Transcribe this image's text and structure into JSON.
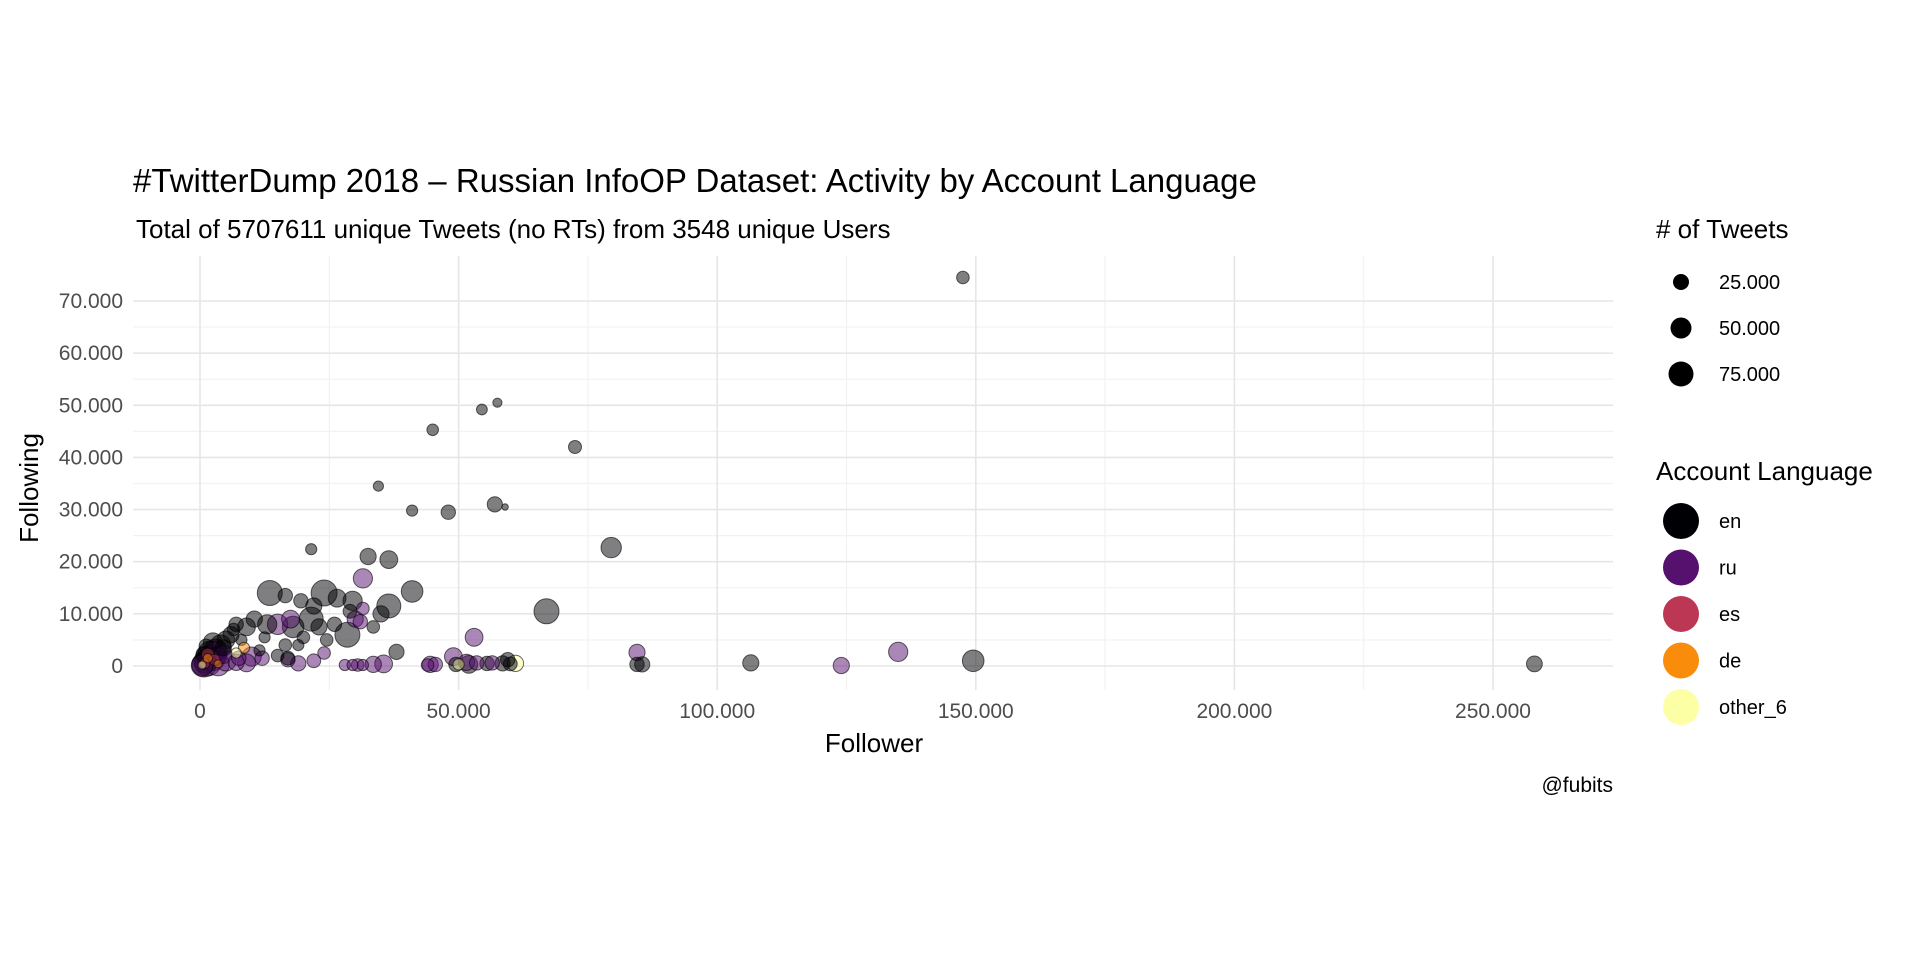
{
  "chart_data": {
    "type": "scatter",
    "title": "#TwitterDump 2018 – Russian InfoOP Dataset: Activity by Account Language",
    "subtitle": "Total of 5707611 unique Tweets (no RTs) from 3548 unique Users",
    "xlabel": "Follower",
    "ylabel": "Following",
    "caption": "@fubits",
    "xlim": [
      -12000,
      270000
    ],
    "ylim": [
      -5000,
      79000
    ],
    "x_ticks": [
      0,
      50000,
      100000,
      150000,
      200000,
      250000
    ],
    "x_tick_labels": [
      "0",
      "50.000",
      "100.000",
      "150.000",
      "200.000",
      "250.000"
    ],
    "y_ticks": [
      0,
      10000,
      20000,
      30000,
      40000,
      50000,
      60000,
      70000
    ],
    "y_tick_labels": [
      "0",
      "10.000",
      "20.000",
      "30.000",
      "40.000",
      "50.000",
      "60.000",
      "70.000"
    ],
    "grid": true,
    "size_legend": {
      "title": "# of Tweets",
      "entries": [
        {
          "label": "25.000",
          "value": 25000
        },
        {
          "label": "50.000",
          "value": 50000
        },
        {
          "label": "75.000",
          "value": 75000
        }
      ]
    },
    "color_legend": {
      "title": "Account Language",
      "entries": [
        {
          "label": "en",
          "color": "#000004"
        },
        {
          "label": "ru",
          "color": "#56106e"
        },
        {
          "label": "es",
          "color": "#bb3754"
        },
        {
          "label": "de",
          "color": "#f98c0a"
        },
        {
          "label": "other_6",
          "color": "#fcffa4"
        }
      ]
    },
    "series": [
      {
        "name": "en",
        "color": "#000004",
        "points": [
          [
            147500,
            74500,
            15000
          ],
          [
            57500,
            50500,
            8000
          ],
          [
            54500,
            49200,
            11000
          ],
          [
            45000,
            45300,
            13000
          ],
          [
            72500,
            42000,
            16000
          ],
          [
            57000,
            31000,
            22000
          ],
          [
            59000,
            30500,
            4000
          ],
          [
            48000,
            29500,
            20000
          ],
          [
            41000,
            29800,
            12000
          ],
          [
            34500,
            34500,
            10000
          ],
          [
            79500,
            22700,
            40000
          ],
          [
            36500,
            20400,
            30000
          ],
          [
            32500,
            21000,
            25000
          ],
          [
            21500,
            22400,
            12000
          ],
          [
            67000,
            10500,
            60000
          ],
          [
            41000,
            14300,
            45000
          ],
          [
            36500,
            11500,
            55000
          ],
          [
            29500,
            12500,
            35000
          ],
          [
            24000,
            14000,
            65000
          ],
          [
            13500,
            14000,
            60000
          ],
          [
            26500,
            13000,
            30000
          ],
          [
            19500,
            12500,
            20000
          ],
          [
            22000,
            11500,
            25000
          ],
          [
            28500,
            6000,
            60000
          ],
          [
            21500,
            9000,
            55000
          ],
          [
            18000,
            7500,
            45000
          ],
          [
            13000,
            8000,
            35000
          ],
          [
            10500,
            9000,
            25000
          ],
          [
            9000,
            7500,
            30000
          ],
          [
            7000,
            8000,
            20000
          ],
          [
            6000,
            6000,
            25000
          ],
          [
            5000,
            5000,
            30000
          ],
          [
            4000,
            4000,
            40000
          ],
          [
            3000,
            3000,
            50000
          ],
          [
            2000,
            2500,
            55000
          ],
          [
            1500,
            1500,
            60000
          ],
          [
            1000,
            800,
            50000
          ],
          [
            500,
            300,
            45000
          ],
          [
            2500,
            4500,
            35000
          ],
          [
            3500,
            2000,
            30000
          ],
          [
            4500,
            3500,
            25000
          ],
          [
            1200,
            3800,
            20000
          ],
          [
            800,
            2200,
            25000
          ],
          [
            16500,
            4000,
            15000
          ],
          [
            23000,
            7500,
            25000
          ],
          [
            26000,
            8000,
            20000
          ],
          [
            33500,
            7500,
            15000
          ],
          [
            38000,
            2700,
            22000
          ],
          [
            35000,
            10000,
            25000
          ],
          [
            29000,
            10500,
            18000
          ],
          [
            19000,
            4000,
            12000
          ],
          [
            17000,
            1500,
            18000
          ],
          [
            15000,
            2000,
            15000
          ],
          [
            11500,
            3000,
            12000
          ],
          [
            20000,
            5500,
            15000
          ],
          [
            24500,
            5000,
            15000
          ],
          [
            16500,
            13500,
            20000
          ],
          [
            6500,
            7000,
            15000
          ],
          [
            8000,
            5000,
            12000
          ],
          [
            12500,
            5500,
            12000
          ],
          [
            52000,
            300,
            30000
          ],
          [
            49500,
            300,
            20000
          ],
          [
            55500,
            500,
            20000
          ],
          [
            58500,
            500,
            22000
          ],
          [
            59500,
            1200,
            20000
          ],
          [
            60000,
            400,
            18000
          ],
          [
            84500,
            300,
            20000
          ],
          [
            85500,
            300,
            22000
          ],
          [
            106500,
            600,
            25000
          ],
          [
            149500,
            1000,
            45000
          ],
          [
            258000,
            400,
            24000
          ]
        ]
      },
      {
        "name": "ru",
        "color": "#56106e",
        "points": [
          [
            31500,
            16800,
            35000
          ],
          [
            31500,
            11000,
            15000
          ],
          [
            30000,
            9000,
            25000
          ],
          [
            31000,
            8500,
            20000
          ],
          [
            53000,
            5500,
            30000
          ],
          [
            49000,
            1800,
            30000
          ],
          [
            51500,
            700,
            25000
          ],
          [
            53500,
            600,
            20000
          ],
          [
            56500,
            600,
            20000
          ],
          [
            44500,
            300,
            25000
          ],
          [
            45500,
            300,
            20000
          ],
          [
            44000,
            200,
            15000
          ],
          [
            35500,
            400,
            30000
          ],
          [
            33500,
            300,
            25000
          ],
          [
            30500,
            200,
            15000
          ],
          [
            28000,
            200,
            12000
          ],
          [
            29500,
            200,
            12000
          ],
          [
            31500,
            200,
            12000
          ],
          [
            24000,
            2500,
            15000
          ],
          [
            22000,
            1000,
            18000
          ],
          [
            19000,
            500,
            22000
          ],
          [
            17000,
            1200,
            20000
          ],
          [
            15000,
            8000,
            40000
          ],
          [
            17500,
            9000,
            30000
          ],
          [
            10000,
            1800,
            35000
          ],
          [
            9000,
            600,
            30000
          ],
          [
            7000,
            700,
            25000
          ],
          [
            5000,
            1000,
            40000
          ],
          [
            3500,
            300,
            50000
          ],
          [
            2500,
            1500,
            60000
          ],
          [
            1500,
            600,
            65000
          ],
          [
            800,
            200,
            55000
          ],
          [
            400,
            100,
            45000
          ],
          [
            4500,
            2200,
            30000
          ],
          [
            3000,
            2800,
            35000
          ],
          [
            7500,
            1500,
            20000
          ],
          [
            12000,
            1500,
            20000
          ],
          [
            84500,
            2600,
            25000
          ],
          [
            124000,
            100,
            25000
          ],
          [
            135000,
            2700,
            35000
          ]
        ]
      },
      {
        "name": "es",
        "color": "#bb3754",
        "points": [
          [
            1500,
            2200,
            15000
          ],
          [
            900,
            500,
            10000
          ],
          [
            2800,
            1200,
            12000
          ]
        ]
      },
      {
        "name": "de",
        "color": "#f98c0a",
        "points": [
          [
            1500,
            1500,
            8000
          ],
          [
            3500,
            400,
            6000
          ],
          [
            8500,
            3500,
            12000
          ]
        ]
      },
      {
        "name": "other_6",
        "color": "#fcffa4",
        "points": [
          [
            400,
            200,
            6000
          ],
          [
            61000,
            500,
            25000
          ],
          [
            50000,
            300,
            12000
          ],
          [
            7000,
            2500,
            10000
          ]
        ]
      }
    ]
  }
}
